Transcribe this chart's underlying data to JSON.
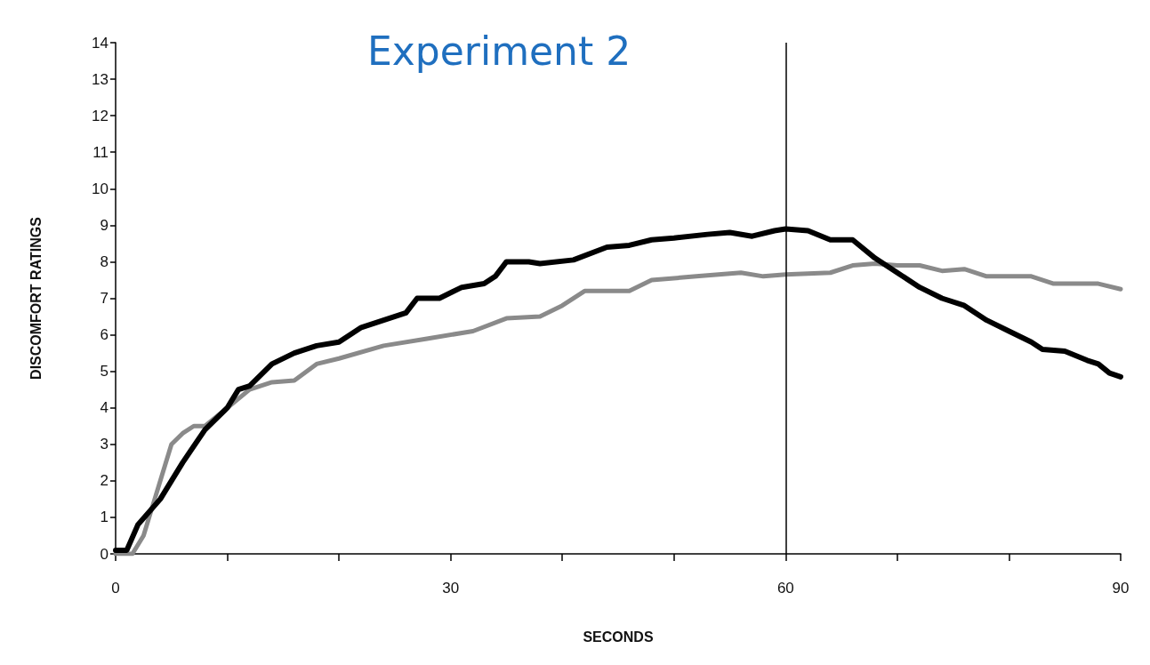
{
  "chart_data": {
    "type": "line",
    "title": "Experiment 2",
    "xlabel": "SECONDS",
    "ylabel": "DISCOMFORT RATINGS",
    "xlim": [
      0,
      90
    ],
    "xticks": [
      0,
      {
        "value": 10,
        "label": null
      },
      {
        "value": 20,
        "label": null
      },
      30,
      {
        "value": 40,
        "label": null
      },
      {
        "value": 50,
        "label": null
      },
      60,
      {
        "value": 70,
        "label": null
      },
      {
        "value": 80,
        "label": null
      },
      90
    ],
    "ylim": [
      0,
      14
    ],
    "yticks": [
      0,
      1,
      2,
      3,
      4,
      5,
      6,
      7,
      8,
      9,
      10,
      11,
      12,
      13,
      14
    ],
    "grid": false,
    "marker": "none",
    "line_style": "solid",
    "ref_lines": [
      {
        "axis": "x",
        "value": 60,
        "color": "#000000"
      }
    ],
    "series": [
      {
        "color": "#8a8a8a",
        "x": [
          0,
          1.5,
          2.5,
          3.5,
          4.5,
          5,
          6,
          7,
          8,
          10,
          12,
          14,
          16,
          18,
          20,
          24,
          28,
          32,
          35,
          38,
          40,
          42,
          46,
          48,
          52,
          56,
          58,
          60,
          64,
          66,
          68,
          70,
          72,
          74,
          76,
          78,
          82,
          84,
          88,
          90
        ],
        "values": [
          0,
          0,
          0.5,
          1.5,
          2.5,
          3,
          3.3,
          3.5,
          3.5,
          4,
          4.5,
          4.7,
          4.75,
          5.2,
          5.35,
          5.7,
          5.9,
          6.1,
          6.45,
          6.5,
          6.8,
          7.2,
          7.2,
          7.5,
          7.6,
          7.7,
          7.6,
          7.65,
          7.7,
          7.9,
          7.95,
          7.9,
          7.9,
          7.75,
          7.8,
          7.6,
          7.6,
          7.4,
          7.4,
          7.25
        ]
      },
      {
        "color": "#000000",
        "x": [
          0,
          1,
          2,
          4,
          6,
          8,
          10,
          11,
          12,
          14,
          16,
          18,
          20,
          22,
          24,
          26,
          27,
          29,
          31,
          33,
          34,
          35,
          37,
          38,
          41,
          44,
          46,
          48,
          50,
          53,
          55,
          57,
          59,
          60,
          62,
          64,
          66,
          68,
          70,
          72,
          74,
          76,
          78,
          80,
          82,
          83,
          85,
          87,
          88,
          89,
          90
        ],
        "values": [
          0.1,
          0.1,
          0.8,
          1.5,
          2.5,
          3.4,
          4,
          4.5,
          4.6,
          5.2,
          5.5,
          5.7,
          5.8,
          6.2,
          6.4,
          6.6,
          7,
          7,
          7.3,
          7.4,
          7.6,
          8,
          8,
          7.95,
          8.05,
          8.4,
          8.45,
          8.6,
          8.65,
          8.75,
          8.8,
          8.7,
          8.85,
          8.9,
          8.85,
          8.6,
          8.6,
          8.1,
          7.7,
          7.3,
          7,
          6.8,
          6.4,
          6.1,
          5.8,
          5.6,
          5.55,
          5.3,
          5.2,
          4.95,
          4.85
        ]
      }
    ]
  }
}
